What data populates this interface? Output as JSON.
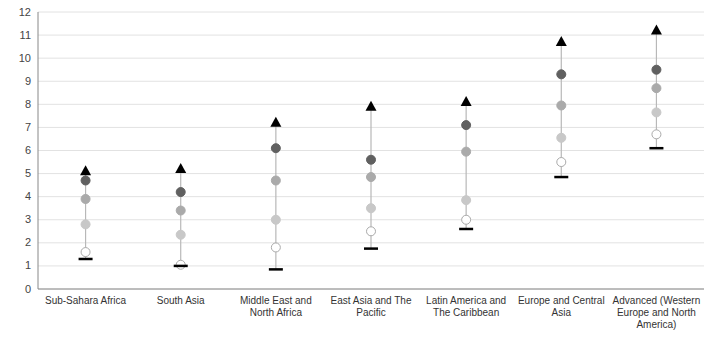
{
  "chart_data": {
    "type": "dot",
    "categories": [
      "Sub-Sahara Africa",
      "South Asia",
      "Middle East and\nNorth Africa",
      "East Asia and The\nPacific",
      "Latin America and\nThe Caribbean",
      "Europe and Central\nAsia",
      "Advanced (Western\nEurope and North\nAmerica)"
    ],
    "series": [
      {
        "color": "#000000",
        "marker": "dash",
        "values": [
          1.3,
          1.0,
          0.85,
          1.75,
          2.6,
          4.85,
          6.1
        ]
      },
      {
        "color": "#ffffff",
        "marker": "circle",
        "values": [
          1.6,
          1.05,
          1.8,
          2.5,
          3.0,
          5.5,
          6.7
        ]
      },
      {
        "color": "#c8c8c8",
        "marker": "circle",
        "values": [
          2.8,
          2.35,
          3.0,
          3.5,
          3.85,
          6.55,
          7.65
        ]
      },
      {
        "color": "#aaaaaa",
        "marker": "circle",
        "values": [
          3.9,
          3.4,
          4.7,
          4.85,
          5.95,
          7.95,
          8.7
        ]
      },
      {
        "color": "#606060",
        "marker": "circle",
        "values": [
          4.7,
          4.2,
          6.1,
          5.6,
          7.1,
          9.3,
          9.5
        ]
      },
      {
        "color": "#000000",
        "marker": "triangle",
        "values": [
          5.1,
          5.2,
          7.2,
          7.9,
          8.1,
          10.7,
          11.2
        ]
      }
    ],
    "ylim": [
      0,
      12
    ],
    "yticks": [
      0,
      1,
      2,
      3,
      4,
      5,
      6,
      7,
      8,
      9,
      10,
      11,
      12
    ],
    "grid": true
  }
}
